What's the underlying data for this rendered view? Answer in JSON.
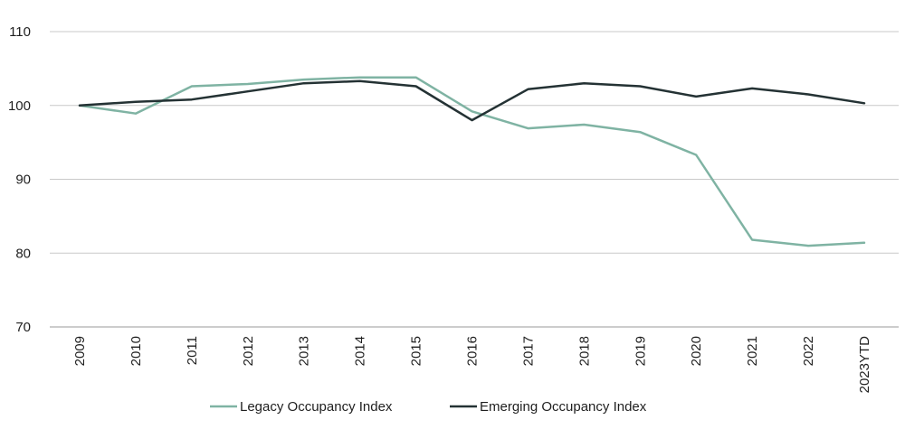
{
  "chart_data": {
    "type": "line",
    "title": "",
    "xlabel": "",
    "ylabel": "",
    "categories": [
      "2009",
      "2010",
      "2011",
      "2012",
      "2013",
      "2014",
      "2015",
      "2016",
      "2017",
      "2018",
      "2019",
      "2020",
      "2021",
      "2022",
      "2023YTD"
    ],
    "yticks": [
      "110",
      "100",
      "90",
      "80",
      "70"
    ],
    "ylim": [
      70,
      110
    ],
    "grid": true,
    "legend_position": "bottom",
    "series": [
      {
        "name": "Legacy Occupancy Index",
        "color": "#7fb3a3",
        "values": [
          100,
          98.9,
          102.6,
          102.9,
          103.5,
          103.8,
          103.8,
          99.2,
          96.9,
          97.4,
          96.4,
          93.3,
          81.8,
          81.0,
          81.4
        ]
      },
      {
        "name": "Emerging Occupancy Index",
        "color": "#243234",
        "values": [
          100,
          100.5,
          100.8,
          101.9,
          103.0,
          103.3,
          102.6,
          98.0,
          102.2,
          103.0,
          102.6,
          101.2,
          102.3,
          101.5,
          100.3
        ]
      }
    ]
  }
}
